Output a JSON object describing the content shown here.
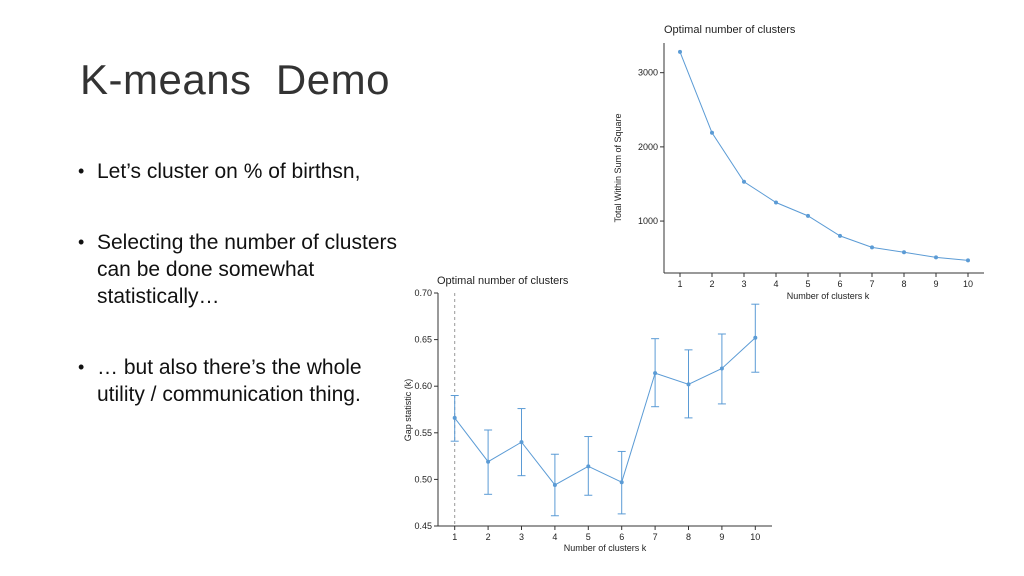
{
  "slide": {
    "title": "K-means  Demo",
    "bullets": [
      "Let’s cluster on % of birthsn,",
      "Selecting the number of clusters can be done somewhat statistically…",
      "… but also there’s the whole utility / communication thing."
    ]
  },
  "colors": {
    "series": "#5b9bd5",
    "axis": "#333333",
    "vline": "#999999"
  },
  "chart_data": [
    {
      "type": "line",
      "title": "Optimal number of clusters",
      "xlabel": "Number of clusters k",
      "ylabel": "Total Within Sum of Square",
      "x": [
        1,
        2,
        3,
        4,
        5,
        6,
        7,
        8,
        9,
        10
      ],
      "series": [
        {
          "values": [
            3280,
            2190,
            1530,
            1250,
            1070,
            800,
            645,
            580,
            510,
            470
          ]
        }
      ],
      "xlim": [
        0.5,
        10.5
      ],
      "ylim": [
        300,
        3400
      ],
      "yticks": [
        1000,
        2000,
        3000
      ],
      "grid": false
    },
    {
      "type": "line",
      "title": "Optimal number of clusters",
      "xlabel": "Number of clusters k",
      "ylabel": "Gap statistic (k)",
      "x": [
        1,
        2,
        3,
        4,
        5,
        6,
        7,
        8,
        9,
        10
      ],
      "series": [
        {
          "values": [
            0.566,
            0.519,
            0.54,
            0.494,
            0.514,
            0.497,
            0.614,
            0.602,
            0.619,
            0.652
          ],
          "error_low": [
            0.541,
            0.484,
            0.504,
            0.461,
            0.483,
            0.463,
            0.578,
            0.566,
            0.581,
            0.615
          ],
          "error_high": [
            0.59,
            0.553,
            0.576,
            0.527,
            0.546,
            0.53,
            0.651,
            0.639,
            0.656,
            0.688
          ]
        }
      ],
      "optimal_k": 1,
      "xlim": [
        0.5,
        10.5
      ],
      "ylim": [
        0.45,
        0.7
      ],
      "yticks": [
        0.45,
        0.5,
        0.55,
        0.6,
        0.65,
        0.7
      ],
      "grid": false
    }
  ]
}
